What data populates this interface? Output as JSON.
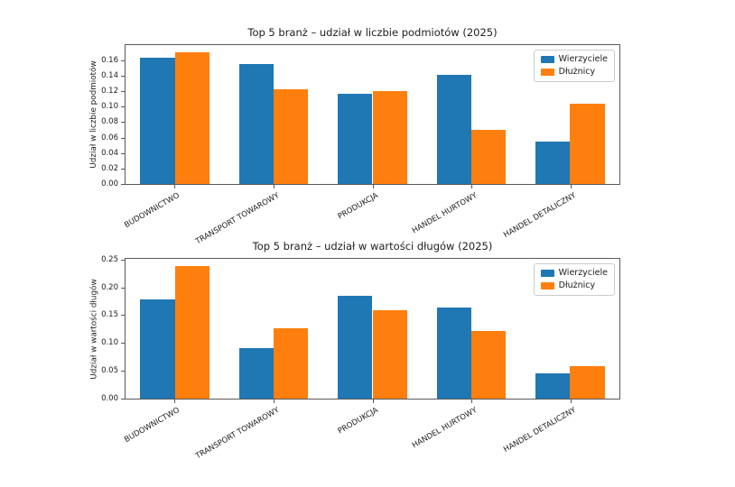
{
  "styles": {
    "background": "#ffffff",
    "spine_color": "#5a5a5a",
    "text_color": "#202020",
    "legend_border": "#cccccc",
    "series_blue": "#1f77b4",
    "series_orange": "#ff7f0e"
  },
  "chart_data": [
    {
      "type": "bar",
      "title": "Top 5 branż – udział w liczbie podmiotów (2025)",
      "ylabel": "Udział w liczbie podmiotów",
      "xlabel": "",
      "categories": [
        "BUDOWNICTWO",
        "TRANSPORT TOWAROWY",
        "PRODUKCJA",
        "HANDEL HURTOWY",
        "HANDEL DETALICZNY"
      ],
      "series": [
        {
          "key": "wierzyciele",
          "name": "Wierzyciele",
          "color": "#1f77b4",
          "values": [
            0.163,
            0.155,
            0.117,
            0.141,
            0.055
          ]
        },
        {
          "key": "dluznicy",
          "name": "Dłużnicy",
          "color": "#ff7f0e",
          "values": [
            0.17,
            0.122,
            0.12,
            0.07,
            0.104
          ]
        }
      ],
      "ylim": [
        0,
        0.1795
      ],
      "yticks": [
        0.0,
        0.02,
        0.04,
        0.06,
        0.08,
        0.1,
        0.12,
        0.14,
        0.16
      ],
      "ytick_labels": [
        "0.00",
        "0.02",
        "0.04",
        "0.06",
        "0.08",
        "0.10",
        "0.12",
        "0.14",
        "0.16"
      ],
      "bar_width_fraction": 0.35,
      "grid": false,
      "legend": {
        "position": "upper right",
        "entries": [
          "Wierzyciele",
          "Dłużnicy"
        ]
      }
    },
    {
      "type": "bar",
      "title": "Top 5 branż – udział w wartości długów (2025)",
      "ylabel": "Udział w wartości długów",
      "xlabel": "",
      "categories": [
        "BUDOWNICTWO",
        "TRANSPORT TOWAROWY",
        "PRODUKCJA",
        "HANDEL HURTOWY",
        "HANDEL DETALICZNY"
      ],
      "series": [
        {
          "key": "wierzyciele",
          "name": "Wierzyciele",
          "color": "#1f77b4",
          "values": [
            0.178,
            0.09,
            0.185,
            0.164,
            0.046
          ]
        },
        {
          "key": "dluznicy",
          "name": "Dłużnicy",
          "color": "#ff7f0e",
          "values": [
            0.239,
            0.126,
            0.159,
            0.122,
            0.058
          ]
        }
      ],
      "ylim": [
        0,
        0.2512
      ],
      "yticks": [
        0.0,
        0.05,
        0.1,
        0.15,
        0.2,
        0.25
      ],
      "ytick_labels": [
        "0.00",
        "0.05",
        "0.10",
        "0.15",
        "0.20",
        "0.25"
      ],
      "bar_width_fraction": 0.35,
      "grid": false,
      "legend": {
        "position": "upper right",
        "entries": [
          "Wierzyciele",
          "Dłużnicy"
        ]
      }
    }
  ]
}
